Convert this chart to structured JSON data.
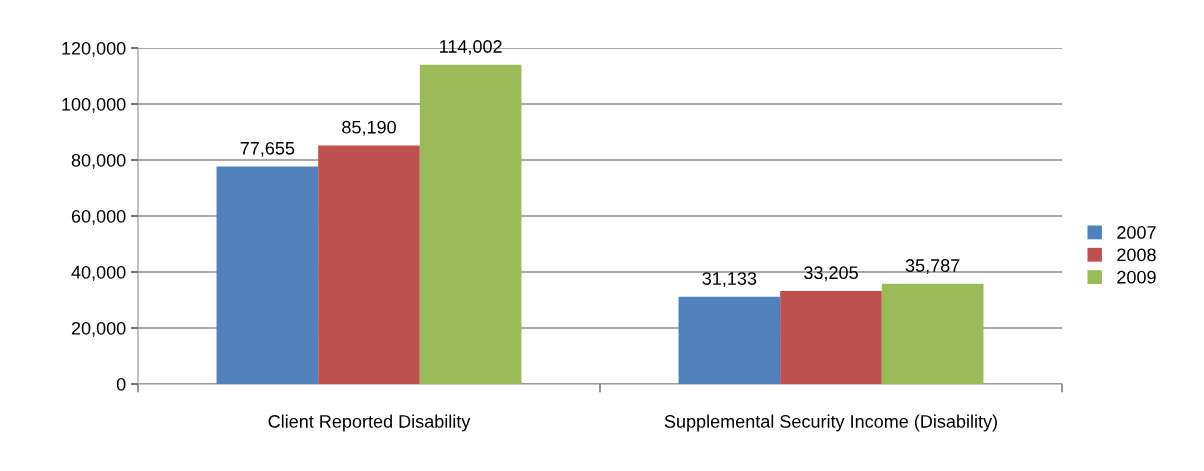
{
  "chart_data": {
    "type": "bar",
    "categories": [
      "Client Reported Disability",
      "Supplemental Security Income (Disability)"
    ],
    "series": [
      {
        "name": "2007",
        "color": "#4f81bd",
        "values": [
          77655,
          31133
        ],
        "value_labels": [
          "77,655",
          "31,133"
        ]
      },
      {
        "name": "2008",
        "color": "#c0504d",
        "values": [
          85190,
          33205
        ],
        "value_labels": [
          "85,190",
          "33,205"
        ]
      },
      {
        "name": "2009",
        "color": "#9bbb59",
        "values": [
          114002,
          35787
        ],
        "value_labels": [
          "114,002",
          "35,787"
        ]
      }
    ],
    "ylim": [
      0,
      120000
    ],
    "yticks": [
      {
        "value": 0,
        "label": "0"
      },
      {
        "value": 20000,
        "label": "20,000"
      },
      {
        "value": 40000,
        "label": "40,000"
      },
      {
        "value": 60000,
        "label": "60,000"
      },
      {
        "value": 80000,
        "label": "80,000"
      },
      {
        "value": 100000,
        "label": "100,000"
      },
      {
        "value": 120000,
        "label": "120,000"
      }
    ],
    "grid": "y",
    "legend": "right"
  }
}
